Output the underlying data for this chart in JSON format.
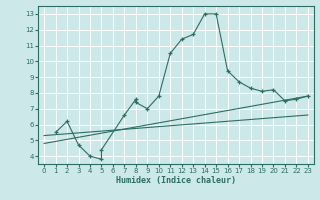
{
  "xlabel": "Humidex (Indice chaleur)",
  "bg_color": "#cce8e8",
  "grid_color": "#ffffff",
  "line_color": "#2d6e63",
  "xlim": [
    -0.5,
    23.5
  ],
  "ylim": [
    3.5,
    13.5
  ],
  "xticks": [
    0,
    1,
    2,
    3,
    4,
    5,
    6,
    7,
    8,
    9,
    10,
    11,
    12,
    13,
    14,
    15,
    16,
    17,
    18,
    19,
    20,
    21,
    22,
    23
  ],
  "yticks": [
    4,
    5,
    6,
    7,
    8,
    9,
    10,
    11,
    12,
    13
  ],
  "main_x": [
    1,
    2,
    3,
    4,
    5,
    5,
    7,
    8,
    8,
    9,
    10,
    11,
    12,
    13,
    14,
    15,
    16,
    17,
    18,
    19,
    20,
    21,
    22,
    23
  ],
  "main_y": [
    5.5,
    6.2,
    4.7,
    4.0,
    3.8,
    4.4,
    6.6,
    7.6,
    7.4,
    7.0,
    7.8,
    10.5,
    11.4,
    11.7,
    13.0,
    13.0,
    9.4,
    8.7,
    8.3,
    8.1,
    8.2,
    7.5,
    7.6,
    7.8
  ],
  "trend_x": [
    0,
    23
  ],
  "trend_y": [
    5.3,
    6.6
  ],
  "trend2_x": [
    0,
    23
  ],
  "trend2_y": [
    4.8,
    7.8
  ]
}
